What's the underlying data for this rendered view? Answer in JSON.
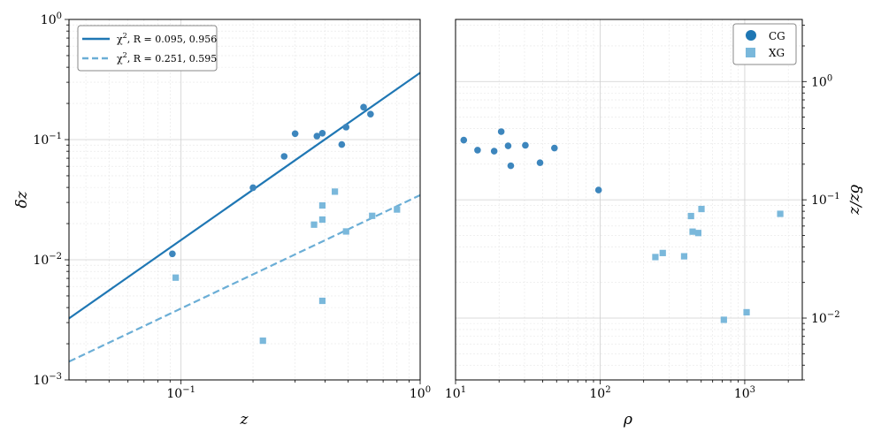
{
  "chart_data": [
    {
      "type": "scatter",
      "xlabel": "z",
      "ylabel": "δz",
      "xscale": "log",
      "yscale": "log",
      "xlim": [
        0.034,
        1.0
      ],
      "ylim": [
        0.001,
        1.0
      ],
      "grid": true,
      "legend_position": "top-left",
      "x_major_ticks": [
        {
          "value": 0.1,
          "base": "10",
          "exp": "−1"
        },
        {
          "value": 1,
          "base": "10",
          "exp": "0"
        }
      ],
      "y_major_ticks": [
        {
          "value": 0.001,
          "base": "10",
          "exp": "−3"
        },
        {
          "value": 0.01,
          "base": "10",
          "exp": "−2"
        },
        {
          "value": 0.1,
          "base": "10",
          "exp": "−1"
        },
        {
          "value": 1,
          "base": "10",
          "exp": "0"
        }
      ],
      "series": [
        {
          "name": "CG",
          "marker": "circle",
          "color": "#3d86bd",
          "points": [
            [
              0.092,
              0.0112
            ],
            [
              0.2,
              0.0398
            ],
            [
              0.27,
              0.0725
            ],
            [
              0.3,
              0.112
            ],
            [
              0.37,
              0.107
            ],
            [
              0.39,
              0.113
            ],
            [
              0.47,
              0.091
            ],
            [
              0.49,
              0.127
            ],
            [
              0.58,
              0.186
            ],
            [
              0.62,
              0.163
            ]
          ]
        },
        {
          "name": "XG",
          "marker": "square",
          "color": "#7ab8db",
          "points": [
            [
              0.095,
              0.0071
            ],
            [
              0.22,
              0.00212
            ],
            [
              0.36,
              0.0196
            ],
            [
              0.39,
              0.0216
            ],
            [
              0.39,
              0.0283
            ],
            [
              0.44,
              0.0369
            ],
            [
              0.49,
              0.0172
            ],
            [
              0.39,
              0.00455
            ],
            [
              0.63,
              0.0232
            ],
            [
              0.8,
              0.0262
            ]
          ]
        }
      ],
      "fits": [
        {
          "name": "χ2, R=0.095, 0.956",
          "label_prefix": "χ",
          "label_sup": "2",
          "label_r": ", R = 0.095, 0.956",
          "style": "solid",
          "color": "#1f77b4",
          "x_range": [
            0.034,
            1.0
          ],
          "y_range": [
            0.00325,
            0.36
          ]
        },
        {
          "name": "χ2, R=0.251, 0.595",
          "label_prefix": "χ",
          "label_sup": "2",
          "label_r": ", R = 0.251, 0.595",
          "style": "dashed",
          "color": "#6baed6",
          "x_range": [
            0.034,
            1.0
          ],
          "y_range": [
            0.00142,
            0.0345
          ]
        }
      ]
    },
    {
      "type": "scatter",
      "xlabel": "ρ",
      "ylabel": "δz/z",
      "xscale": "log",
      "yscale": "log",
      "xlim": [
        10,
        2500
      ],
      "ylim": [
        0.003,
        3.35
      ],
      "grid": true,
      "legend_position": "top-right",
      "y_axis_side": "right",
      "x_major_ticks": [
        {
          "value": 10,
          "base": "10",
          "exp": "1"
        },
        {
          "value": 100,
          "base": "10",
          "exp": "2"
        },
        {
          "value": 1000,
          "base": "10",
          "exp": "3"
        }
      ],
      "y_major_ticks": [
        {
          "value": 0.01,
          "base": "10",
          "exp": "−2"
        },
        {
          "value": 0.1,
          "base": "10",
          "exp": "−1"
        },
        {
          "value": 1,
          "base": "10",
          "exp": "0"
        }
      ],
      "series": [
        {
          "name": "CG",
          "marker": "circle",
          "color": "#3d86bd",
          "points": [
            [
              11.4,
              0.32
            ],
            [
              14.2,
              0.263
            ],
            [
              18.5,
              0.258
            ],
            [
              20.7,
              0.377
            ],
            [
              23.1,
              0.286
            ],
            [
              24.1,
              0.194
            ],
            [
              30.4,
              0.289
            ],
            [
              38.4,
              0.206
            ],
            [
              48.3,
              0.274
            ],
            [
              97.5,
              0.121
            ]
          ]
        },
        {
          "name": "XG",
          "marker": "square",
          "color": "#7ab8db",
          "points": [
            [
              241,
              0.0328
            ],
            [
              271,
              0.0355
            ],
            [
              381,
              0.0333
            ],
            [
              425,
              0.0729
            ],
            [
              436,
              0.0538
            ],
            [
              477,
              0.0524
            ],
            [
              502,
              0.0836
            ],
            [
              717,
              0.00967
            ],
            [
              1030,
              0.0112
            ],
            [
              1760,
              0.0761
            ]
          ]
        }
      ]
    }
  ],
  "legend_right": [
    {
      "label": "CG",
      "marker": "circle",
      "color": "#1f77b4"
    },
    {
      "label": "XG",
      "marker": "square",
      "color": "#7ab8db"
    }
  ]
}
